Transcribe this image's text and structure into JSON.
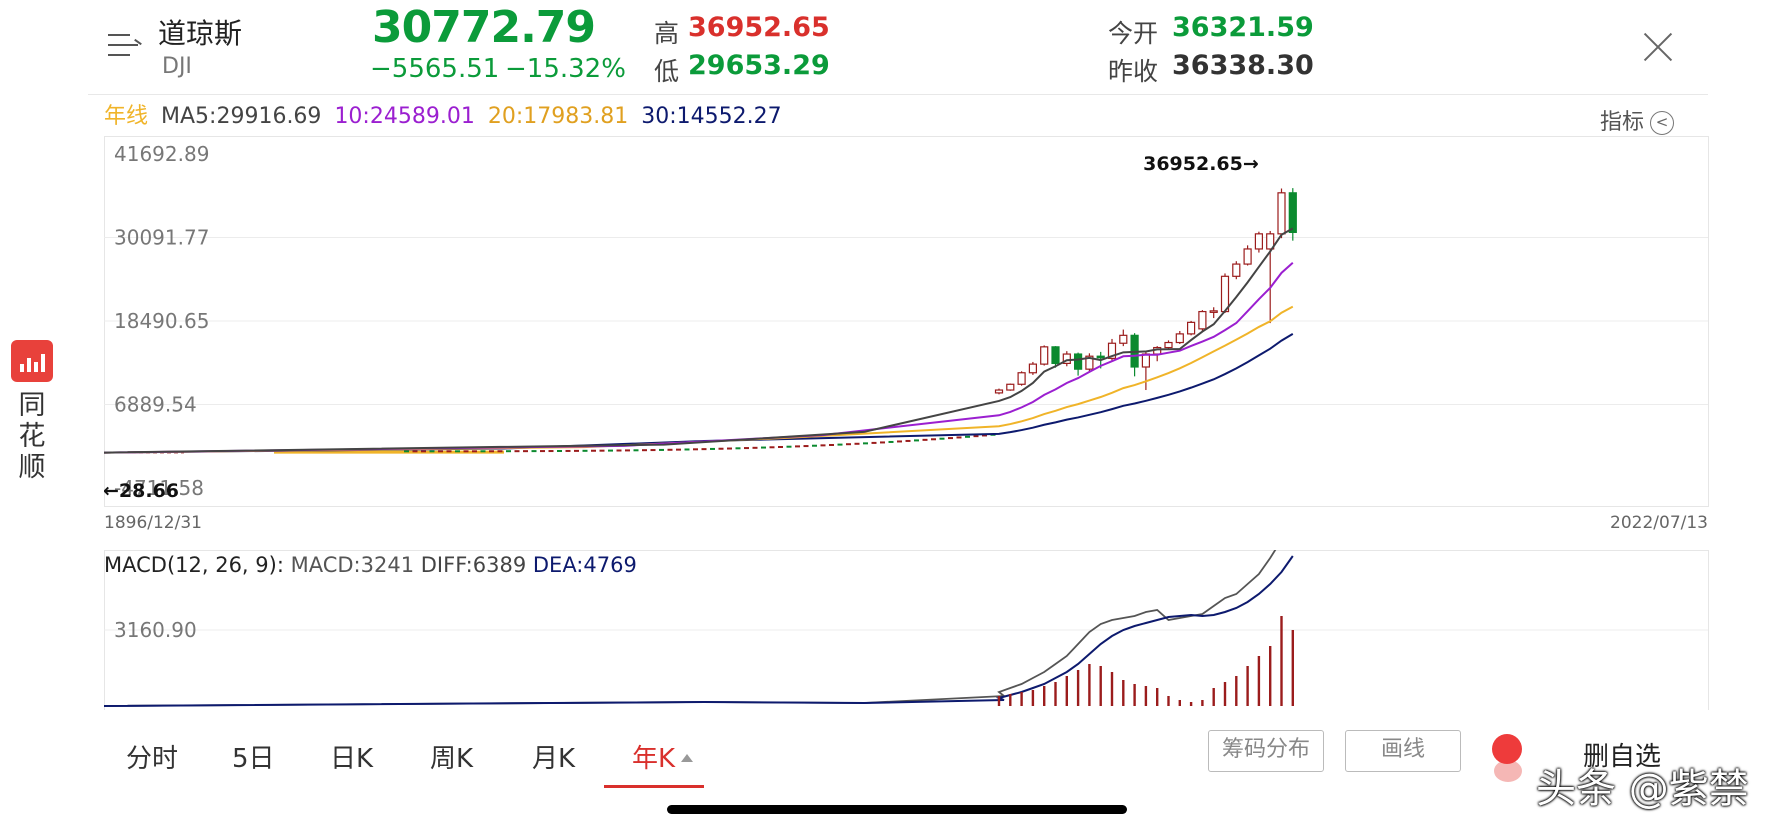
{
  "header": {
    "name": "道琼斯",
    "code": "DJI",
    "price": "30772.79",
    "change": "−5565.51",
    "change_pct": "−15.32%",
    "high_label": "高",
    "high": "36952.65",
    "low_label": "低",
    "low": "29653.29",
    "open_label": "今开",
    "open": "36321.59",
    "prev_close_label": "昨收",
    "prev_close": "36338.30"
  },
  "colors": {
    "up": "#d9302c",
    "down": "#0b9b3a",
    "ma5": "#444444",
    "ma10": "#9b1fd0",
    "ma20": "#f0b429",
    "ma30": "#0d1a6e"
  },
  "ma_legend": {
    "period": "年线",
    "ma5": "MA5:29916.69",
    "ma10": "10:24589.01",
    "ma20": "20:17983.81",
    "ma30": "30:14552.27"
  },
  "indicator_button": "指标",
  "side_app": {
    "text": "同花顺"
  },
  "macd_legend": {
    "title": "MACD(12, 26, 9):",
    "macd": "MACD:3241",
    "diff": "DIFF:6389",
    "dea": "DEA:4769"
  },
  "tabs": [
    {
      "label": "分时",
      "active": false
    },
    {
      "label": "5日",
      "active": false
    },
    {
      "label": "日K",
      "active": false
    },
    {
      "label": "周K",
      "active": false
    },
    {
      "label": "月K",
      "active": false
    },
    {
      "label": "年K",
      "active": true
    }
  ],
  "buttons": {
    "chips": "筹码分布",
    "draw": "画线",
    "delete_fav": "删自选"
  },
  "watermark": "头条 @紫禁",
  "chart_data": [
    {
      "type": "candlestick",
      "title": "",
      "y_ticks": [
        "41692.89",
        "30091.77",
        "18490.65",
        "6889.54",
        "-4711.58"
      ],
      "ylim": [
        -4711.58,
        41692.89
      ],
      "x_start_label": "1896/12/31",
      "x_end_label": "2022/07/13",
      "high_annotation": "36952.65→",
      "low_annotation": "←28.66",
      "grid": true,
      "candles": [
        {
          "o": 8500,
          "c": 8900,
          "h": 9100,
          "l": 8300
        },
        {
          "o": 8900,
          "c": 9700,
          "h": 9800,
          "l": 8800
        },
        {
          "o": 9700,
          "c": 11300,
          "h": 11500,
          "l": 9500
        },
        {
          "o": 11300,
          "c": 12500,
          "h": 12800,
          "l": 11000
        },
        {
          "o": 12500,
          "c": 14900,
          "h": 15100,
          "l": 12300
        },
        {
          "o": 14900,
          "c": 12600,
          "h": 15000,
          "l": 12000
        },
        {
          "o": 12600,
          "c": 13900,
          "h": 14300,
          "l": 12200
        },
        {
          "o": 13900,
          "c": 11800,
          "h": 14100,
          "l": 10900
        },
        {
          "o": 11800,
          "c": 13600,
          "h": 14000,
          "l": 11500
        },
        {
          "o": 13600,
          "c": 13400,
          "h": 14200,
          "l": 11900
        },
        {
          "o": 13300,
          "c": 15400,
          "h": 16000,
          "l": 13000
        },
        {
          "o": 15400,
          "c": 16500,
          "h": 17300,
          "l": 15000
        },
        {
          "o": 16500,
          "c": 12100,
          "h": 16800,
          "l": 10800
        },
        {
          "o": 12100,
          "c": 13900,
          "h": 14200,
          "l": 8900
        },
        {
          "o": 13900,
          "c": 14800,
          "h": 15000,
          "l": 12900
        },
        {
          "o": 14800,
          "c": 15500,
          "h": 15800,
          "l": 14500
        },
        {
          "o": 15500,
          "c": 16700,
          "h": 17100,
          "l": 15300
        },
        {
          "o": 16700,
          "c": 18300,
          "h": 18500,
          "l": 16500
        },
        {
          "o": 17400,
          "c": 19800,
          "h": 20000,
          "l": 17000
        },
        {
          "o": 19800,
          "c": 19900,
          "h": 20400,
          "l": 18900
        },
        {
          "o": 19800,
          "c": 24700,
          "h": 25100,
          "l": 19600
        },
        {
          "o": 24700,
          "c": 26400,
          "h": 26800,
          "l": 24300
        },
        {
          "o": 26400,
          "c": 28500,
          "h": 29000,
          "l": 26200
        },
        {
          "o": 28500,
          "c": 30600,
          "h": 30900,
          "l": 28000
        },
        {
          "o": 28500,
          "c": 30600,
          "h": 31000,
          "l": 18200
        },
        {
          "o": 30600,
          "c": 36300,
          "h": 36900,
          "l": 30000
        },
        {
          "o": 36300,
          "c": 30800,
          "h": 36952.65,
          "l": 29653.29
        }
      ]
    },
    {
      "type": "line",
      "title": "MACD(12, 26, 9)",
      "y_ticks": [
        "3160.90"
      ],
      "series": [
        {
          "name": "DIFF",
          "color": "#444444"
        },
        {
          "name": "DEA",
          "color": "#0d1a6e"
        },
        {
          "name": "MACD",
          "color": "#9b1c1c"
        }
      ]
    }
  ]
}
